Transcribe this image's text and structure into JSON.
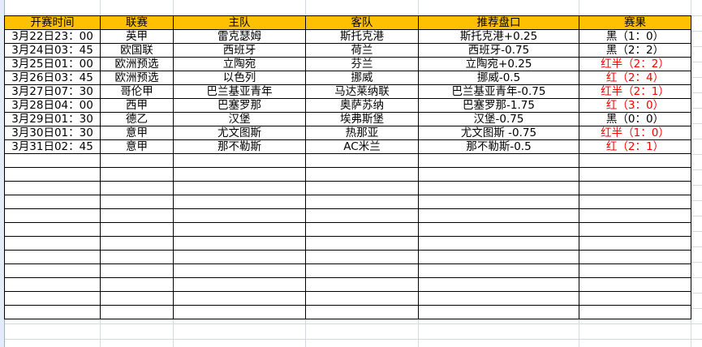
{
  "headers": [
    "开赛时间",
    "联赛",
    "主队",
    "客队",
    "推荐盘口",
    "赛果"
  ],
  "colors": {
    "header_bg": "#ffc000",
    "win": "#ff0000",
    "loss": "#000000"
  },
  "rows": [
    {
      "time": "3月22日23：00",
      "league": "英甲",
      "home": "雷克瑟姆",
      "away": "斯托克港",
      "tip": "斯托克港+0.25",
      "result": "黑（1：0）",
      "red": false
    },
    {
      "time": "3月24日03：45",
      "league": "欧国联",
      "home": "西班牙",
      "away": "荷兰",
      "tip": "西班牙-0.75",
      "result": "黑（2：2）",
      "red": false
    },
    {
      "time": "3月25日01：00",
      "league": "欧洲预选",
      "home": "立陶宛",
      "away": "芬兰",
      "tip": "立陶宛+0.25",
      "result": "红半（2：2）",
      "red": true
    },
    {
      "time": "3月26日03：45",
      "league": "欧洲预选",
      "home": "以色列",
      "away": "挪威",
      "tip": "挪威-0.5",
      "result": "红（2：4）",
      "red": true
    },
    {
      "time": "3月27日07：30",
      "league": "哥伦甲",
      "home": "巴兰基亚青年",
      "away": "马达莱纳联",
      "tip": "巴兰基亚青年-0.75",
      "result": "红半（2：1）",
      "red": true
    },
    {
      "time": "3月28日04：00",
      "league": "西甲",
      "home": "巴塞罗那",
      "away": "奥萨苏纳",
      "tip": "巴塞罗那-1.75",
      "result": "红（3：0）",
      "red": true
    },
    {
      "time": "3月29日01：30",
      "league": "德乙",
      "home": "汉堡",
      "away": "埃弗斯堡",
      "tip": "汉堡-0.75",
      "result": "黑（0：0）",
      "red": false
    },
    {
      "time": "3月30日01：30",
      "league": "意甲",
      "home": "尤文图斯",
      "away": "热那亚",
      "tip": "尤文图斯 -0.75",
      "result": "红半（1：0）",
      "red": true
    },
    {
      "time": "3月31日02：45",
      "league": "意甲",
      "home": "那不勒斯",
      "away": "AC米兰",
      "tip": "那不勒斯-0.5",
      "result": "红（2：1）",
      "red": true
    }
  ]
}
